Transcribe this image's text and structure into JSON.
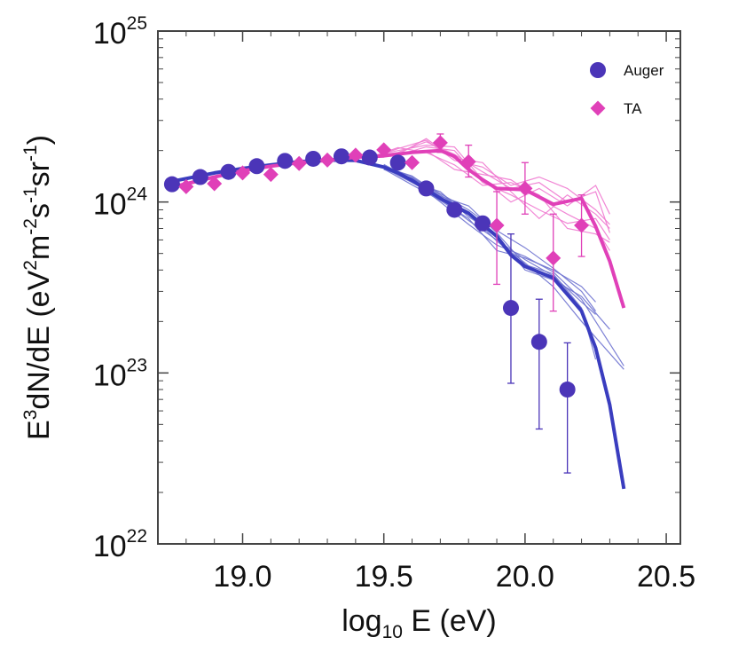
{
  "chart_data": {
    "type": "scatter",
    "xlabel_parts": {
      "main": "log",
      "sub": "10",
      "rest": " E (eV)"
    },
    "ylabel_parts": [
      "E",
      "3",
      "dN/dE (eV",
      "2",
      "m",
      "-2",
      "s",
      "-1",
      "sr",
      "-1",
      ")"
    ],
    "xlim": [
      18.7,
      20.55
    ],
    "ylim": [
      1e+22,
      1e+25
    ],
    "yscale": "log",
    "x_ticks": [
      {
        "value": 19.0,
        "label": "19.0"
      },
      {
        "value": 19.5,
        "label": "19.5"
      },
      {
        "value": 20.0,
        "label": "20.0"
      },
      {
        "value": 20.5,
        "label": "20.5"
      }
    ],
    "y_ticks": [
      {
        "value": 1e+22,
        "base": "10",
        "exp": "22"
      },
      {
        "value": 1e+23,
        "base": "10",
        "exp": "23"
      },
      {
        "value": 1e+24,
        "base": "10",
        "exp": "24"
      },
      {
        "value": 1e+25,
        "base": "10",
        "exp": "25"
      }
    ],
    "legend_position": "top-right",
    "series": [
      {
        "name": "Auger",
        "marker": "circle",
        "color": "#4b35b8",
        "x": [
          18.75,
          18.85,
          18.95,
          19.05,
          19.15,
          19.25,
          19.35,
          19.45,
          19.55,
          19.65,
          19.75,
          19.85,
          19.95,
          20.05,
          20.15
        ],
        "y": [
          1.27e+24,
          1.4e+24,
          1.5e+24,
          1.62e+24,
          1.74e+24,
          1.79e+24,
          1.85e+24,
          1.82e+24,
          1.7e+24,
          1.2e+24,
          9e+23,
          7.5e+23,
          2.4e+23,
          1.52e+23,
          8e+22
        ],
        "err_low": [
          null,
          null,
          null,
          null,
          null,
          null,
          null,
          null,
          null,
          null,
          null,
          6.8e+23,
          8.7e+22,
          4.7e+22,
          2.6e+22
        ],
        "err_high": [
          null,
          null,
          null,
          null,
          null,
          null,
          null,
          null,
          null,
          null,
          null,
          8.2e+23,
          6.5e+23,
          2.7e+23,
          1.5e+23
        ]
      },
      {
        "name": "TA",
        "marker": "diamond",
        "color": "#e040b8",
        "x": [
          18.8,
          18.9,
          19.0,
          19.1,
          19.2,
          19.3,
          19.4,
          19.5,
          19.6,
          19.7,
          19.8,
          19.9,
          20.0,
          20.1,
          20.2
        ],
        "y": [
          1.23e+24,
          1.28e+24,
          1.48e+24,
          1.45e+24,
          1.68e+24,
          1.76e+24,
          1.88e+24,
          2.02e+24,
          1.7e+24,
          2.22e+24,
          1.72e+24,
          7.3e+23,
          1.2e+24,
          4.7e+23,
          7.3e+23
        ],
        "err_low": [
          null,
          null,
          null,
          null,
          null,
          null,
          null,
          null,
          null,
          1.95e+24,
          1.4e+24,
          3.3e+23,
          8.5e+23,
          2.3e+23,
          4.8e+23
        ],
        "err_high": [
          null,
          null,
          null,
          null,
          null,
          null,
          null,
          null,
          null,
          2.5e+24,
          2.15e+24,
          1.15e+24,
          1.7e+24,
          8.5e+23,
          1.1e+24
        ]
      }
    ],
    "model_lines": [
      {
        "color": "#3a3dbf",
        "width": 4,
        "x": [
          18.75,
          18.9,
          19.0,
          19.1,
          19.2,
          19.3,
          19.4,
          19.5,
          19.55,
          19.6,
          19.7,
          19.8,
          19.9,
          19.95,
          20.0,
          20.1,
          20.2,
          20.25,
          20.3,
          20.35
        ],
        "y": [
          1.32e+24,
          1.48e+24,
          1.57e+24,
          1.65e+24,
          1.72e+24,
          1.76e+24,
          1.75e+24,
          1.6e+24,
          1.48e+24,
          1.34e+24,
          1.05e+24,
          8.6e+23,
          6.3e+23,
          4.9e+23,
          4.2e+23,
          3.6e+23,
          2.3e+23,
          1.4e+23,
          6.5e+22,
          2.1e+22
        ]
      },
      {
        "color": "#e040b8",
        "width": 4,
        "x": [
          18.75,
          18.9,
          19.0,
          19.1,
          19.2,
          19.3,
          19.4,
          19.5,
          19.6,
          19.7,
          19.75,
          19.8,
          19.85,
          19.9,
          20.0,
          20.1,
          20.2,
          20.25,
          20.3,
          20.35
        ],
        "y": [
          1.22e+24,
          1.4e+24,
          1.52e+24,
          1.62e+24,
          1.7e+24,
          1.75e+24,
          1.83e+24,
          1.86e+24,
          1.95e+24,
          2e+24,
          1.85e+24,
          1.55e+24,
          1.35e+24,
          1.2e+24,
          1.18e+24,
          9.7e+23,
          1.05e+24,
          7.2e+23,
          4.5e+23,
          2.4e+23
        ]
      }
    ],
    "mock_lines": [
      {
        "color": "#6f73d0",
        "x": [
          19.5,
          19.6,
          19.7,
          19.8,
          19.9,
          20.0,
          20.1,
          20.2,
          20.25
        ],
        "y": [
          1.62e+24,
          1.3e+24,
          1.05e+24,
          7.8e+23,
          6e+23,
          4.6e+23,
          3.7e+23,
          2.6e+23,
          2.2e+23
        ]
      },
      {
        "color": "#6f73d0",
        "x": [
          19.5,
          19.6,
          19.7,
          19.8,
          19.9,
          20.0,
          20.1,
          20.2,
          20.25
        ],
        "y": [
          1.55e+24,
          1.38e+24,
          1.12e+24,
          9e+23,
          6.8e+23,
          5.4e+23,
          4.1e+23,
          3e+23,
          2.3e+23
        ]
      },
      {
        "color": "#6f73d0",
        "x": [
          19.5,
          19.6,
          19.7,
          19.8,
          19.9,
          20.0,
          20.1,
          20.2,
          20.35
        ],
        "y": [
          1.6e+24,
          1.42e+24,
          1.1e+24,
          8.6e+23,
          5.9e+23,
          4.4e+23,
          3.2e+23,
          2e+23,
          1.05e+23
        ]
      },
      {
        "color": "#6f73d0",
        "x": [
          19.5,
          19.6,
          19.7,
          19.8,
          19.9,
          20.0,
          20.1,
          20.2,
          20.35
        ],
        "y": [
          1.66e+24,
          1.35e+24,
          1e+24,
          7.4e+23,
          5.6e+23,
          4.8e+23,
          3.9e+23,
          2.7e+23,
          1.1e+23
        ]
      },
      {
        "color": "#6f73d0",
        "x": [
          19.5,
          19.6,
          19.7,
          19.8,
          19.9,
          20.0,
          20.1,
          20.2,
          20.3
        ],
        "y": [
          1.58e+24,
          1.3e+24,
          1.15e+24,
          8.2e+23,
          6.4e+23,
          4e+23,
          3.5e+23,
          2.8e+23,
          1.8e+23
        ]
      },
      {
        "color": "#6f73d0",
        "x": [
          19.5,
          19.6,
          19.7,
          19.8,
          19.9,
          20.0,
          20.1,
          20.2,
          20.25
        ],
        "y": [
          1.64e+24,
          1.4e+24,
          1.08e+24,
          9.5e+23,
          6.6e+23,
          4.3e+23,
          3.8e+23,
          2.4e+23,
          1.2e+23
        ]
      },
      {
        "color": "#6f73d0",
        "x": [
          19.5,
          19.6,
          19.7,
          19.8,
          19.9,
          20.0,
          20.1,
          20.2,
          20.25
        ],
        "y": [
          1.56e+24,
          1.26e+24,
          1.02e+24,
          8e+23,
          5.2e+23,
          4.7e+23,
          4e+23,
          3.2e+23,
          2.6e+23
        ]
      },
      {
        "color": "#f07ad0",
        "x": [
          19.45,
          19.55,
          19.65,
          19.75,
          19.85,
          19.95,
          20.05,
          20.15,
          20.25,
          20.3
        ],
        "y": [
          1.85e+24,
          1.95e+24,
          2.25e+24,
          1.9e+24,
          1.5e+24,
          1.2e+24,
          1.3e+24,
          1e+24,
          1.15e+24,
          6.6e+23
        ]
      },
      {
        "color": "#f07ad0",
        "x": [
          19.45,
          19.55,
          19.65,
          19.75,
          19.85,
          19.95,
          20.05,
          20.15,
          20.25,
          20.3
        ],
        "y": [
          1.9e+24,
          1.88e+24,
          2.1e+24,
          2e+24,
          1.3e+24,
          1.1e+24,
          9e+23,
          7.5e+23,
          8e+23,
          6e+23
        ]
      },
      {
        "color": "#f07ad0",
        "x": [
          19.45,
          19.55,
          19.65,
          19.75,
          19.85,
          19.95,
          20.05,
          20.15,
          20.25,
          20.3
        ],
        "y": [
          1.8e+24,
          2.05e+24,
          2.3e+24,
          1.75e+24,
          1.6e+24,
          1.25e+24,
          1.4e+24,
          1.2e+24,
          9e+23,
          7.4e+23
        ]
      },
      {
        "color": "#f07ad0",
        "x": [
          19.45,
          19.55,
          19.65,
          19.75,
          19.85,
          19.95,
          20.05,
          20.15,
          20.25,
          20.3
        ],
        "y": [
          1.88e+24,
          1.92e+24,
          2e+24,
          1.55e+24,
          1.45e+24,
          1.35e+24,
          1.05e+24,
          8.5e+23,
          7e+23,
          5.2e+23
        ]
      },
      {
        "color": "#f07ad0",
        "x": [
          19.45,
          19.55,
          19.65,
          19.75,
          19.85,
          19.95,
          20.05,
          20.15,
          20.25,
          20.3
        ],
        "y": [
          1.84e+24,
          2e+24,
          2.15e+24,
          2.1e+24,
          1.35e+24,
          1e+24,
          1.2e+24,
          9.5e+23,
          1.25e+24,
          8.5e+23
        ]
      },
      {
        "color": "#f07ad0",
        "x": [
          19.45,
          19.55,
          19.65,
          19.75,
          19.85,
          19.95,
          20.05,
          20.15,
          20.25,
          20.3
        ],
        "y": [
          1.86e+24,
          1.9e+24,
          2.35e+24,
          1.8e+24,
          1.7e+24,
          1.15e+24,
          8e+23,
          1.1e+24,
          8.5e+23,
          7e+23
        ]
      },
      {
        "color": "#f07ad0",
        "x": [
          19.45,
          19.55,
          19.65,
          19.75,
          19.85,
          19.95,
          20.05,
          20.15,
          20.25,
          20.3
        ],
        "y": [
          1.82e+24,
          2.08e+24,
          1.95e+24,
          1.65e+24,
          1.25e+24,
          1.3e+24,
          1.1e+24,
          7e+23,
          6.5e+23,
          5.8e+23
        ]
      }
    ]
  }
}
